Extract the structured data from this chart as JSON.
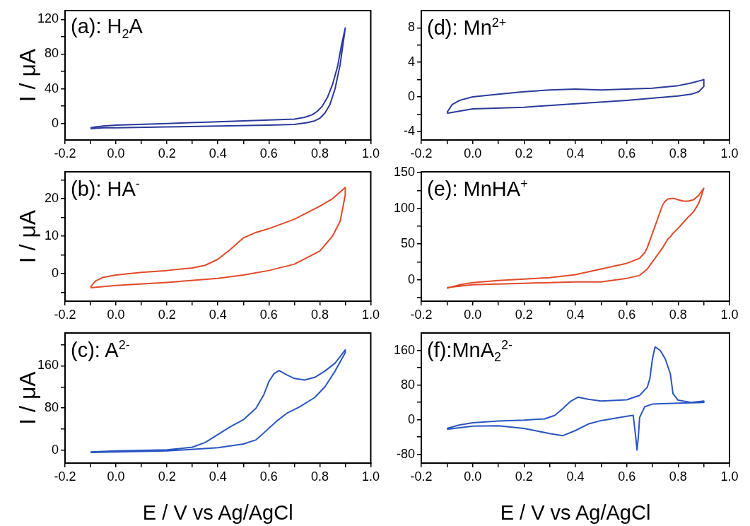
{
  "chart_data": [
    {
      "type": "line",
      "ylabel": "I / μA",
      "annotations": [
        "(a): H$_{2}$A"
      ],
      "xlim": [
        -0.2,
        1.0
      ],
      "xticks": [
        -0.2,
        {
          "value": -0.1,
          "label": null
        },
        {
          "value": 0,
          "label": "0.0"
        },
        {
          "value": 0.1,
          "label": null
        },
        0.2,
        {
          "value": 0.3,
          "label": null
        },
        0.4,
        {
          "value": 0.5,
          "label": null
        },
        0.6,
        {
          "value": 0.7,
          "label": null
        },
        0.8,
        {
          "value": 0.9,
          "label": null
        },
        {
          "value": 1.0,
          "label": "1.0"
        }
      ],
      "ylim": [
        -19,
        130
      ],
      "yticks": [
        0,
        {
          "value": 20,
          "label": null
        },
        40,
        {
          "value": 60,
          "label": null
        },
        80,
        {
          "value": 100,
          "label": null
        },
        120
      ],
      "series": [
        {
          "color": "#2b3a9a",
          "x": [
            -0.1,
            -0.05,
            0,
            0.2,
            0.4,
            0.6,
            0.7,
            0.75,
            0.78,
            0.8,
            0.82,
            0.84,
            0.86,
            0.88,
            0.9,
            0.885,
            0.87,
            0.85,
            0.83,
            0.81,
            0.79,
            0.77,
            0.74,
            0.7,
            0.6,
            0.4,
            0.2,
            0,
            -0.05,
            -0.08,
            -0.1
          ],
          "values": [
            -6,
            -5,
            -5,
            -4,
            -3,
            -2,
            -1,
            1,
            3,
            6,
            12,
            22,
            40,
            68,
            110,
            90,
            66,
            45,
            30,
            20,
            14,
            10,
            7,
            5,
            4,
            2,
            0,
            -2,
            -3,
            -4,
            -5
          ]
        }
      ]
    },
    {
      "type": "line",
      "annotations": [
        "(d): Mn$^{2+}$"
      ],
      "xlim": [
        -0.2,
        1.0
      ],
      "xticks": [
        -0.2,
        {
          "value": -0.1,
          "label": null
        },
        {
          "value": 0,
          "label": "0.0"
        },
        {
          "value": 0.1,
          "label": null
        },
        0.2,
        {
          "value": 0.3,
          "label": null
        },
        0.4,
        {
          "value": 0.5,
          "label": null
        },
        0.6,
        {
          "value": 0.7,
          "label": null
        },
        0.8,
        {
          "value": 0.9,
          "label": null
        },
        {
          "value": 1.0,
          "label": "1.0"
        }
      ],
      "ylim": [
        -5,
        10
      ],
      "yticks": [
        -4,
        {
          "value": -2,
          "label": null
        },
        0,
        {
          "value": 2,
          "label": null
        },
        4,
        {
          "value": 6,
          "label": null
        },
        8
      ],
      "series": [
        {
          "color": "#2b3a9a",
          "x": [
            -0.1,
            -0.08,
            -0.05,
            0,
            0.1,
            0.2,
            0.3,
            0.4,
            0.5,
            0.6,
            0.7,
            0.8,
            0.85,
            0.9,
            0.9,
            0.88,
            0.85,
            0.8,
            0.6,
            0.4,
            0.2,
            0,
            -0.1
          ],
          "values": [
            -1.8,
            -0.9,
            -0.4,
            0,
            0.3,
            0.6,
            0.8,
            0.9,
            0.8,
            0.9,
            1.0,
            1.3,
            1.6,
            2.0,
            1.2,
            0.6,
            0.3,
            0.1,
            -0.4,
            -0.8,
            -1.2,
            -1.4,
            -1.9
          ]
        }
      ]
    },
    {
      "type": "line",
      "ylabel": "I / μA",
      "annotations": [
        "(b): HA$^{-}$"
      ],
      "xlim": [
        -0.2,
        1.0
      ],
      "xticks": [
        -0.2,
        {
          "value": -0.1,
          "label": null
        },
        {
          "value": 0,
          "label": "0.0"
        },
        {
          "value": 0.1,
          "label": null
        },
        0.2,
        {
          "value": 0.3,
          "label": null
        },
        0.4,
        {
          "value": 0.5,
          "label": null
        },
        0.6,
        {
          "value": 0.7,
          "label": null
        },
        0.8,
        {
          "value": 0.9,
          "label": null
        },
        {
          "value": 1.0,
          "label": "1.0"
        }
      ],
      "ylim": [
        -7.4,
        27.2
      ],
      "yticks": [
        {
          "value": -5,
          "label": null
        },
        0,
        {
          "value": 5,
          "label": null
        },
        10,
        {
          "value": 15,
          "label": null
        },
        20,
        {
          "value": 25,
          "label": null
        }
      ],
      "series": [
        {
          "color": "#e04a2a",
          "x": [
            -0.1,
            -0.08,
            -0.05,
            0,
            0.1,
            0.2,
            0.3,
            0.35,
            0.4,
            0.45,
            0.5,
            0.55,
            0.6,
            0.7,
            0.8,
            0.85,
            0.9,
            0.9,
            0.88,
            0.85,
            0.8,
            0.7,
            0.6,
            0.5,
            0.4,
            0.2,
            0,
            -0.1
          ],
          "values": [
            -3.6,
            -2,
            -1,
            -0.4,
            0.3,
            0.8,
            1.5,
            2.2,
            3.8,
            6.5,
            9.5,
            11,
            12,
            14.5,
            18,
            20,
            23,
            21,
            14,
            10,
            6,
            2.5,
            0.8,
            -0.4,
            -1.3,
            -2.4,
            -3.2,
            -3.8
          ]
        }
      ]
    },
    {
      "type": "line",
      "annotations": [
        "(e): MnHA$^{+}$"
      ],
      "xlim": [
        -0.2,
        1.0
      ],
      "xticks": [
        -0.2,
        {
          "value": -0.1,
          "label": null
        },
        {
          "value": 0,
          "label": "0.0"
        },
        {
          "value": 0.1,
          "label": null
        },
        0.2,
        {
          "value": 0.3,
          "label": null
        },
        0.4,
        {
          "value": 0.5,
          "label": null
        },
        0.6,
        {
          "value": 0.7,
          "label": null
        },
        0.8,
        {
          "value": 0.9,
          "label": null
        },
        {
          "value": 1.0,
          "label": "1.0"
        }
      ],
      "ylim": [
        -30,
        151
      ],
      "yticks": [
        {
          "value": -25,
          "label": null
        },
        0,
        {
          "value": 25,
          "label": null
        },
        50,
        {
          "value": 75,
          "label": null
        },
        100,
        {
          "value": 125,
          "label": null
        },
        150
      ],
      "series": [
        {
          "color": "#e04a2a",
          "x": [
            -0.1,
            -0.05,
            0,
            0.1,
            0.2,
            0.3,
            0.4,
            0.5,
            0.6,
            0.65,
            0.67,
            0.68,
            0.69,
            0.7,
            0.71,
            0.72,
            0.73,
            0.74,
            0.75,
            0.76,
            0.78,
            0.8,
            0.82,
            0.84,
            0.86,
            0.88,
            0.9,
            0.89,
            0.88,
            0.86,
            0.84,
            0.82,
            0.8,
            0.78,
            0.77,
            0.76,
            0.74,
            0.72,
            0.7,
            0.68,
            0.67,
            0.65,
            0.6,
            0.5,
            0.4,
            0.3,
            0.2,
            0.1,
            0,
            -0.05,
            -0.1
          ],
          "values": [
            -12,
            -7,
            -4,
            -1,
            1,
            3,
            7,
            15,
            23,
            30,
            38,
            45,
            55,
            65,
            75,
            85,
            95,
            105,
            110,
            113,
            114,
            112,
            110,
            110,
            112,
            118,
            128,
            117,
            107,
            95,
            88,
            80,
            72,
            65,
            60,
            57,
            45,
            35,
            25,
            15,
            12,
            6,
            2,
            -3,
            -3,
            -4,
            -5,
            -6,
            -7,
            -9,
            -11
          ]
        }
      ]
    },
    {
      "type": "line",
      "ylabel": "I / μA",
      "xlabel": "E / V vs Ag/AgCl",
      "annotations": [
        "(c): A$^{2-}$"
      ],
      "xlim": [
        -0.2,
        1.0
      ],
      "xticks": [
        -0.2,
        {
          "value": -0.1,
          "label": null
        },
        {
          "value": 0,
          "label": "0.0"
        },
        {
          "value": 0.1,
          "label": null
        },
        0.2,
        {
          "value": 0.3,
          "label": null
        },
        0.4,
        {
          "value": 0.5,
          "label": null
        },
        0.6,
        {
          "value": 0.7,
          "label": null
        },
        0.8,
        {
          "value": 0.9,
          "label": null
        },
        {
          "value": 1.0,
          "label": "1.0"
        }
      ],
      "ylim": [
        -24,
        222
      ],
      "yticks": [
        0,
        {
          "value": 40,
          "label": null
        },
        80,
        {
          "value": 120,
          "label": null
        },
        160,
        {
          "value": 200,
          "label": null
        }
      ],
      "series": [
        {
          "color": "#2a55c0",
          "x": [
            -0.1,
            0,
            0.2,
            0.3,
            0.35,
            0.4,
            0.45,
            0.5,
            0.55,
            0.58,
            0.6,
            0.62,
            0.64,
            0.67,
            0.7,
            0.74,
            0.78,
            0.82,
            0.86,
            0.9,
            0.9,
            0.86,
            0.82,
            0.78,
            0.72,
            0.67,
            0.63,
            0.58,
            0.55,
            0.5,
            0.4,
            0.2,
            0,
            -0.1
          ],
          "values": [
            -3,
            -1,
            1,
            6,
            15,
            30,
            45,
            58,
            80,
            105,
            130,
            145,
            151,
            143,
            136,
            133,
            138,
            150,
            165,
            190,
            185,
            150,
            120,
            100,
            82,
            70,
            55,
            33,
            20,
            12,
            5,
            -1,
            -3,
            -4
          ]
        }
      ]
    },
    {
      "type": "line",
      "xlabel": "E / V vs Ag/AgCl",
      "annotations": [
        "(f):MnA$_{2}$$^{2-}$"
      ],
      "xlim": [
        -0.2,
        1.0
      ],
      "xticks": [
        -0.2,
        {
          "value": -0.1,
          "label": null
        },
        {
          "value": 0,
          "label": "0.0"
        },
        {
          "value": 0.1,
          "label": null
        },
        0.2,
        {
          "value": 0.3,
          "label": null
        },
        0.4,
        {
          "value": 0.5,
          "label": null
        },
        0.6,
        {
          "value": 0.7,
          "label": null
        },
        0.8,
        {
          "value": 0.9,
          "label": null
        },
        {
          "value": 1.0,
          "label": "1.0"
        }
      ],
      "ylim": [
        -100,
        200
      ],
      "yticks": [
        -80,
        {
          "value": -40,
          "label": null
        },
        0,
        {
          "value": 40,
          "label": null
        },
        80,
        {
          "value": 120,
          "label": null
        },
        160
      ],
      "series": [
        {
          "color": "#2a55c0",
          "x": [
            -0.1,
            -0.05,
            0,
            0.1,
            0.2,
            0.28,
            0.32,
            0.35,
            0.38,
            0.41,
            0.45,
            0.5,
            0.6,
            0.65,
            0.68,
            0.69,
            0.7,
            0.71,
            0.73,
            0.75,
            0.77,
            0.78,
            0.8,
            0.85,
            0.9,
            0.9,
            0.8,
            0.7,
            0.67,
            0.65,
            0.645,
            0.64,
            0.635,
            0.625,
            0.6,
            0.5,
            0.45,
            0.4,
            0.35,
            0.3,
            0.2,
            0.1,
            0,
            -0.1
          ],
          "values": [
            -20,
            -12,
            -7,
            -3,
            -1,
            2,
            10,
            25,
            42,
            52,
            47,
            43,
            46,
            56,
            75,
            95,
            140,
            168,
            160,
            140,
            105,
            60,
            45,
            40,
            43,
            40,
            38,
            36,
            30,
            5,
            -40,
            -70,
            -40,
            10,
            8,
            -2,
            -10,
            -25,
            -37,
            -32,
            -20,
            -14,
            -15,
            -22
          ]
        }
      ]
    }
  ]
}
